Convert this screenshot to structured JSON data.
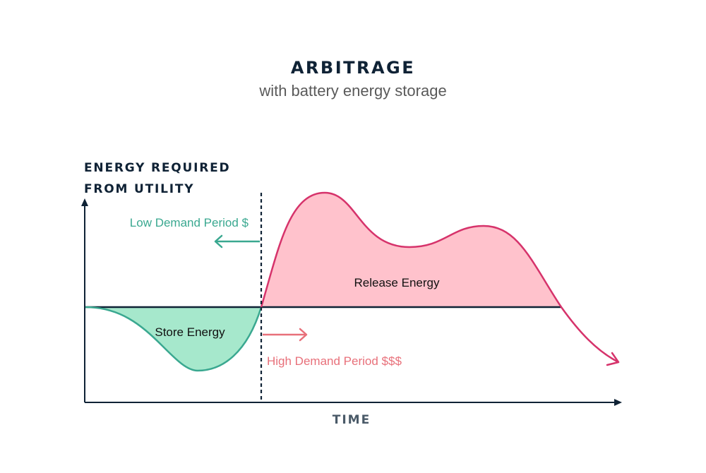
{
  "title": "ARBITRAGE",
  "subtitle": "with battery energy storage",
  "axes": {
    "y_label_line1": "ENERGY REQUIRED",
    "y_label_line2": "FROM UTILITY",
    "x_label": "TIME"
  },
  "periods": {
    "low_demand": "Low Demand Period $",
    "high_demand": "High Demand Period $$$"
  },
  "regions": {
    "store": "Store Energy",
    "release": "Release Energy"
  },
  "colors": {
    "text_dark": "#0f2235",
    "text_gray": "#5a5a5a",
    "axis": "#0f2235",
    "teal": "#3aa890",
    "teal_fill": "#a6e8cc",
    "pink_stroke": "#d6336b",
    "pink_fill": "#ffc2cc",
    "salmon": "#e8707a"
  }
}
